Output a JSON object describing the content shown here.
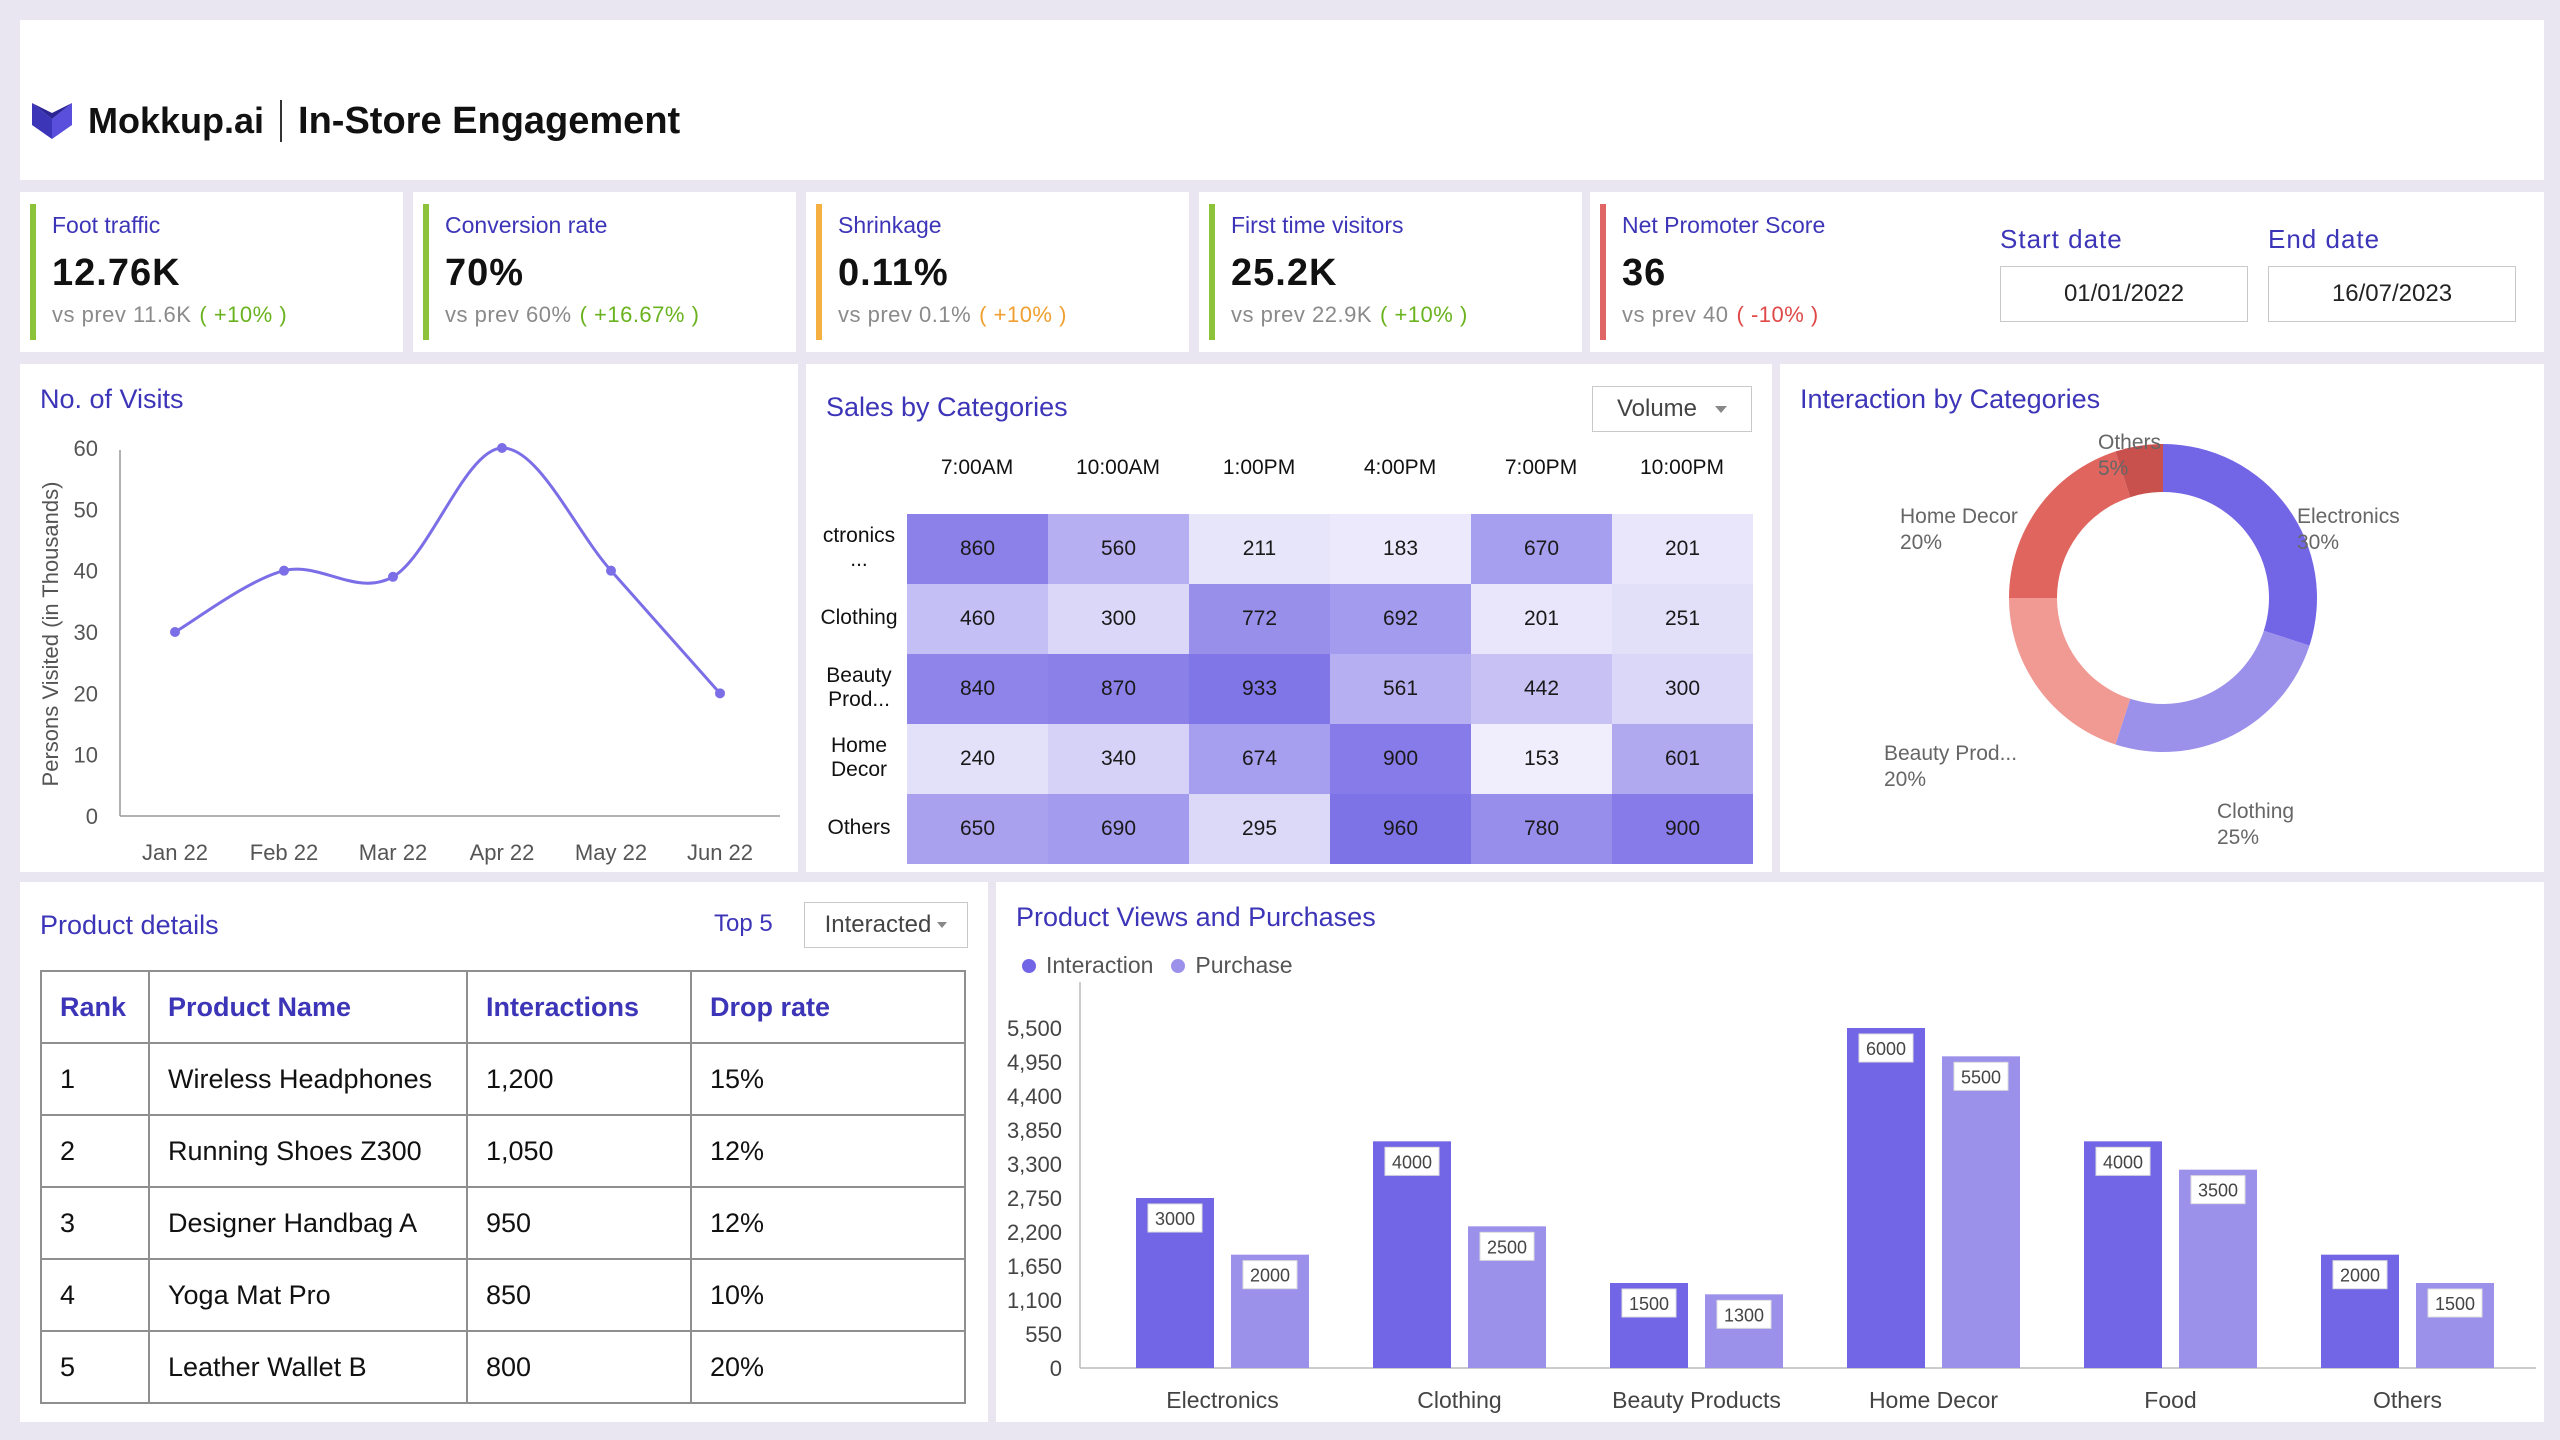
{
  "header": {
    "brand": "Mokkup.ai",
    "title": "In-Store Engagement"
  },
  "kpis": [
    {
      "label": "Foot traffic",
      "value": "12.76K",
      "compare": "vs prev 11.6K",
      "delta": "( +10% )",
      "bar_color": "#8dc23b",
      "delta_color": "#6ab31f"
    },
    {
      "label": "Conversion rate",
      "value": "70%",
      "compare": "vs prev 60%",
      "delta": "( +16.67% )",
      "bar_color": "#8dc23b",
      "delta_color": "#6ab31f"
    },
    {
      "label": "Shrinkage",
      "value": "0.11%",
      "compare": "vs prev 0.1%",
      "delta": "( +10% )",
      "bar_color": "#f5b041",
      "delta_color": "#f0a030"
    },
    {
      "label": "First time visitors",
      "value": "25.2K",
      "compare": "vs prev 22.9K",
      "delta": "( +10% )",
      "bar_color": "#8dc23b",
      "delta_color": "#6ab31f"
    },
    {
      "label": "Net Promoter Score",
      "value": "36",
      "compare": "vs prev 40",
      "delta": "( -10% )",
      "bar_color": "#e06666",
      "delta_color": "#e04848"
    }
  ],
  "dates": {
    "start_label": "Start date",
    "start_value": "01/01/2022",
    "end_label": "End date",
    "end_value": "16/07/2023"
  },
  "visits": {
    "title": "No. of Visits",
    "chart_data": {
      "type": "line",
      "categories": [
        "Jan 22",
        "Feb 22",
        "Mar 22",
        "Apr 22",
        "May 22",
        "Jun 22"
      ],
      "values": [
        30,
        40,
        39,
        60,
        40,
        20
      ],
      "ylabel": "Persons Visited (in Thousands)",
      "yticks": [
        0,
        10,
        20,
        30,
        40,
        50,
        60
      ],
      "ylim": [
        0,
        60
      ],
      "color": "#7b6ee6"
    }
  },
  "sales": {
    "title": "Sales by Categories",
    "dropdown": "Volume",
    "chart_data": {
      "type": "heatmap",
      "columns": [
        "7:00AM",
        "10:00AM",
        "1:00PM",
        "4:00PM",
        "7:00PM",
        "10:00PM"
      ],
      "rows": [
        "ctronics\n...",
        "Clothing",
        "Beauty\nProd...",
        "Home\nDecor",
        "Others"
      ],
      "values": [
        [
          860,
          560,
          211,
          183,
          670,
          201
        ],
        [
          460,
          300,
          772,
          692,
          201,
          251
        ],
        [
          840,
          870,
          933,
          561,
          442,
          300
        ],
        [
          240,
          340,
          674,
          900,
          153,
          601
        ],
        [
          650,
          690,
          295,
          960,
          780,
          900
        ]
      ]
    }
  },
  "interaction": {
    "title": "Interaction by Categories",
    "chart_data": {
      "type": "pie",
      "labels": [
        "Electronics",
        "Clothing",
        "Beauty Prod...",
        "Home Decor",
        "Others"
      ],
      "values": [
        30,
        25,
        20,
        20,
        5
      ],
      "percent_labels": [
        "30%",
        "25%",
        "20%",
        "20%",
        "5%"
      ],
      "colors": [
        "#7366e6",
        "#9b90ea",
        "#f19a94",
        "#e0655f",
        "#c8504d"
      ]
    }
  },
  "details": {
    "title": "Product details",
    "top_link": "Top 5",
    "dropdown": "Interacted",
    "columns": [
      "Rank",
      "Product Name",
      "Interactions",
      "Drop rate"
    ],
    "rows": [
      [
        "1",
        "Wireless Headphones",
        "1,200",
        "15%"
      ],
      [
        "2",
        "Running Shoes Z300",
        "1,050",
        "12%"
      ],
      [
        "3",
        "Designer Handbag A",
        "950",
        "12%"
      ],
      [
        "4",
        "Yoga Mat Pro",
        "850",
        "10%"
      ],
      [
        "5",
        "Leather Wallet B",
        "800",
        "20%"
      ]
    ]
  },
  "views": {
    "title": "Product Views and Purchases",
    "chart_data": {
      "type": "bar",
      "categories": [
        "Electronics",
        "Clothing",
        "Beauty Products",
        "Home Decor",
        "Food",
        "Others"
      ],
      "series": [
        {
          "name": "Interaction",
          "values": [
            3000,
            4000,
            1500,
            6000,
            4000,
            2000
          ],
          "color": "#7366e6"
        },
        {
          "name": "Purchase",
          "values": [
            2000,
            2500,
            1300,
            5500,
            3500,
            1500
          ],
          "color": "#9b90ea"
        }
      ],
      "yticks": [
        "0",
        "550",
        "1,100",
        "1,650",
        "2,200",
        "2,750",
        "3,300",
        "3,850",
        "4,400",
        "4,950",
        "5,500"
      ],
      "ylim": [
        0,
        6000
      ]
    }
  }
}
